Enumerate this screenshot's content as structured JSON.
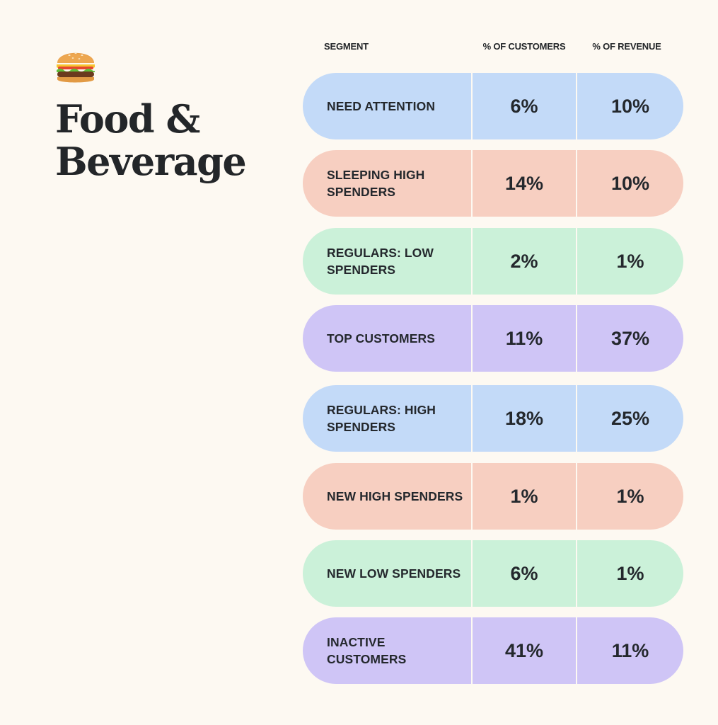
{
  "title_line1": "Food &",
  "title_line2": "Beverage",
  "icon": "burger-emoji-icon",
  "colors": {
    "background": "#fdf9f2",
    "text": "#24282d",
    "blue": "#c3daf8",
    "peach": "#f7cfc1",
    "green": "#cbf1d9",
    "purple": "#cfc5f6"
  },
  "chart_data": {
    "type": "table",
    "columns": [
      "SEGMENT",
      "% OF CUSTOMERS",
      "% OF REVENUE"
    ],
    "rows": [
      {
        "segment": "NEED ATTENTION",
        "customers": "6%",
        "revenue": "10%",
        "color": "#c3daf8"
      },
      {
        "segment": "SLEEPING HIGH SPENDERS",
        "customers": "14%",
        "revenue": "10%",
        "color": "#f7cfc1"
      },
      {
        "segment": "REGULARS: LOW SPENDERS",
        "customers": "2%",
        "revenue": "1%",
        "color": "#cbf1d9"
      },
      {
        "segment": "TOP CUSTOMERS",
        "customers": "11%",
        "revenue": "37%",
        "color": "#cfc5f6"
      },
      {
        "segment": "REGULARS: HIGH SPENDERS",
        "customers": "18%",
        "revenue": "25%",
        "color": "#c3daf8"
      },
      {
        "segment": "NEW HIGH SPENDERS",
        "customers": "1%",
        "revenue": "1%",
        "color": "#f7cfc1"
      },
      {
        "segment": "NEW LOW SPENDERS",
        "customers": "6%",
        "revenue": "1%",
        "color": "#cbf1d9"
      },
      {
        "segment": "INACTIVE CUSTOMERS",
        "customers": "41%",
        "revenue": "11%",
        "color": "#cfc5f6"
      }
    ]
  }
}
